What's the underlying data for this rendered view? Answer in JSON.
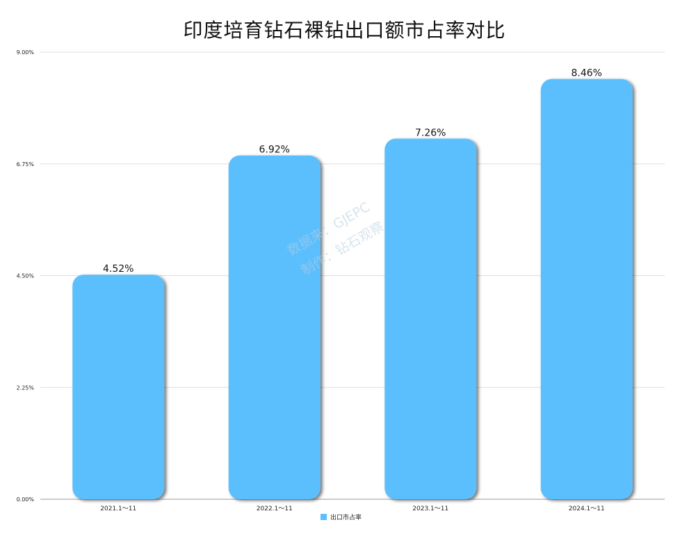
{
  "chart_data": {
    "type": "bar",
    "title": "印度培育钻石裸钻出口额市占率对比",
    "categories": [
      "2021.1～11",
      "2022.1～11",
      "2023.1～11",
      "2024.1～11"
    ],
    "series": [
      {
        "name": "出口市占率",
        "values": [
          4.52,
          6.92,
          7.26,
          8.46
        ]
      }
    ],
    "data_labels": [
      "4.52%",
      "6.92%",
      "7.26%",
      "8.46%"
    ],
    "ylim": [
      0,
      9
    ],
    "yticks": [
      0,
      2.25,
      4.5,
      6.75,
      9
    ],
    "ytick_labels": [
      "0.00%",
      "2.25%",
      "4.50%",
      "6.75%",
      "9.00%"
    ],
    "xlabel": "",
    "ylabel": "",
    "grid": true,
    "legend_position": "bottom",
    "bar_color": "#5bbffd",
    "watermark": [
      "数据来：GJEPC",
      "制作：钻石观察"
    ]
  }
}
